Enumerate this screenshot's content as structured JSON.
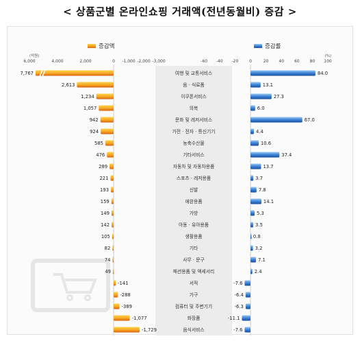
{
  "title": "< 상품군별 온라인쇼핑 거래액(전년동월비) 증감 >",
  "chart_data": {
    "type": "bar",
    "categories": [
      "여행 및 교통서비스",
      "음 · 식료품",
      "이쿠폰서비스",
      "의복",
      "문화 및 레저서비스",
      "가전 · 전자 · 통신기기",
      "농축수산물",
      "기타서비스",
      "자동차 및 자동차용품",
      "스포츠 · 레저용품",
      "신발",
      "애완용품",
      "가방",
      "아동 · 유아용품",
      "생활용품",
      "기타",
      "사무 · 문구",
      "패션용품 및 액세서리",
      "서적",
      "가구",
      "컴퓨터 및 주변기기",
      "화장품",
      "음식서비스"
    ],
    "series": [
      {
        "name": "증감액",
        "unit": "(억원)",
        "values": [
          7767,
          2613,
          1234,
          1057,
          942,
          924,
          585,
          476,
          289,
          221,
          193,
          159,
          149,
          142,
          105,
          82,
          74,
          49,
          -141,
          -288,
          -389,
          -1077,
          -1729
        ],
        "xlim": [
          -3000,
          6000
        ],
        "tick_labels": [
          "6,000",
          "4,000",
          "2,000",
          "0",
          "-1,000",
          "-2,000",
          "-3,000"
        ],
        "color": "#f0a020"
      },
      {
        "name": "증감률",
        "unit": "(%)",
        "values": [
          84.0,
          13.1,
          27.3,
          6.0,
          67.0,
          4.4,
          10.6,
          37.4,
          13.7,
          3.7,
          7.8,
          14.1,
          5.3,
          3.5,
          0.8,
          3.2,
          7.1,
          2.4,
          -7.6,
          -6.4,
          -6.3,
          -11.1,
          -7.6
        ],
        "value_labels": [
          "84.0",
          "13.1",
          "27.3",
          "6.0",
          "67.0",
          "4.4",
          "10.6",
          "37.4",
          "13.7",
          "3.7",
          "7.8",
          "14.1",
          "5.3",
          "3.5",
          "0.8",
          "3.2",
          "7.1",
          "2.4",
          "-7.6",
          "-6.4",
          "-6.3",
          "-11.1",
          "-7.6"
        ],
        "xlim": [
          -60,
          100
        ],
        "tick_labels": [
          "-60",
          "-40",
          "-20",
          "0",
          "20",
          "40",
          "60",
          "80",
          "100"
        ],
        "color": "#2e6fc2"
      }
    ],
    "left_value_labels": [
      "7,767",
      "2,613",
      "1,234",
      "1,057",
      "942",
      "924",
      "585",
      "476",
      "289",
      "221",
      "193",
      "159",
      "149",
      "142",
      "105",
      "82",
      "74",
      "49",
      "-141",
      "-288",
      "-389",
      "-1,077",
      "-1,729"
    ],
    "axis_break": true,
    "grid": false,
    "legend_placement": "top"
  }
}
